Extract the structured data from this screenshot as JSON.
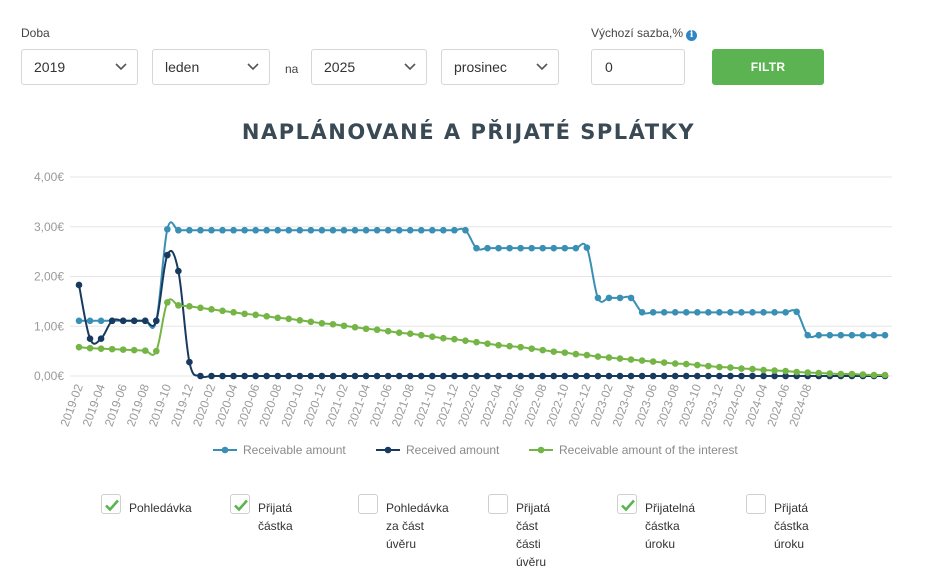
{
  "filters": {
    "period_label": "Doba",
    "from_year": "2019",
    "from_month": "leden",
    "to_label": "na",
    "to_year": "2025",
    "to_month": "prosinec",
    "rate_label": "Výchozí sazba,%",
    "rate_value": "0",
    "filter_button": "FILTR"
  },
  "checkboxes": [
    {
      "label": "Pohledávka",
      "checked": true
    },
    {
      "label": "Přijatá\nčástka",
      "checked": true
    },
    {
      "label": "Pohledávka\nza část\núvěru",
      "checked": false
    },
    {
      "label": "Přijatá\nčást části\núvěru",
      "checked": false
    },
    {
      "label": "Přijatelná\nčástka\núroku",
      "checked": true
    },
    {
      "label": "Přijatá\nčástka\núroku",
      "checked": false
    }
  ],
  "colors": {
    "receivable": "#3a8fb5",
    "received": "#173a5e",
    "interest": "#74b545",
    "accent": "#5cb352",
    "check": "#5cb352"
  },
  "chart_data": {
    "type": "line",
    "title": "NAPLÁNOVANÉ A PŘIJATÉ SPLÁTKY",
    "ylim": [
      0,
      4
    ],
    "yticks": [
      "0,00€",
      "1,00€",
      "2,00€",
      "3,00€",
      "4,00€"
    ],
    "x_start": "2019-02",
    "x_tick_labels": [
      "2019-02",
      "2019-04",
      "2019-06",
      "2019-08",
      "2019-10",
      "2019-12",
      "2020-02",
      "2020-04",
      "2020-06",
      "2020-08",
      "2020-10",
      "2020-12",
      "2021-02",
      "2021-04",
      "2021-06",
      "2021-08",
      "2021-10",
      "2021-12",
      "2022-02",
      "2022-04",
      "2022-06",
      "2022-08",
      "2022-10",
      "2022-12",
      "2023-02",
      "2023-04",
      "2023-06",
      "2023-08",
      "2023-10",
      "2023-12",
      "2024-02",
      "2024-04",
      "2024-06",
      "2024-08"
    ],
    "grid": true,
    "legend_position": "bottom",
    "series": [
      {
        "name": "Receivable amount",
        "values": [
          1.11,
          1.11,
          1.11,
          1.11,
          1.11,
          1.11,
          1.11,
          1.11,
          2.95,
          2.93,
          2.93,
          2.93,
          2.93,
          2.93,
          2.93,
          2.93,
          2.93,
          2.93,
          2.93,
          2.93,
          2.93,
          2.93,
          2.93,
          2.93,
          2.93,
          2.93,
          2.93,
          2.93,
          2.93,
          2.93,
          2.93,
          2.93,
          2.93,
          2.93,
          2.93,
          2.93,
          2.57,
          2.57,
          2.57,
          2.57,
          2.57,
          2.57,
          2.57,
          2.57,
          2.57,
          2.57,
          2.58,
          1.57,
          1.57,
          1.57,
          1.57,
          1.28,
          1.28,
          1.28,
          1.28,
          1.28,
          1.28,
          1.28,
          1.28,
          1.28,
          1.28,
          1.28,
          1.28,
          1.28,
          1.28,
          1.29,
          0.82,
          0.82,
          0.82,
          0.82,
          0.82,
          0.82,
          0.82,
          0.82
        ]
      },
      {
        "name": "Received amount",
        "values": [
          1.83,
          0.75,
          0.75,
          1.11,
          1.11,
          1.11,
          1.11,
          1.11,
          2.43,
          2.11,
          0.28,
          0,
          0,
          0,
          0,
          0,
          0,
          0,
          0,
          0,
          0,
          0,
          0,
          0,
          0,
          0,
          0,
          0,
          0,
          0,
          0,
          0,
          0,
          0,
          0,
          0,
          0,
          0,
          0,
          0,
          0,
          0,
          0,
          0,
          0,
          0,
          0,
          0,
          0,
          0,
          0,
          0,
          0,
          0,
          0,
          0,
          0,
          0,
          0,
          0,
          0,
          0,
          0,
          0,
          0,
          0,
          0,
          0,
          0,
          0,
          0,
          0,
          0,
          0
        ]
      },
      {
        "name": "Receivable amount of the interest",
        "values": [
          0.58,
          0.56,
          0.55,
          0.54,
          0.53,
          0.52,
          0.51,
          0.5,
          1.48,
          1.42,
          1.4,
          1.37,
          1.34,
          1.31,
          1.28,
          1.25,
          1.23,
          1.2,
          1.17,
          1.15,
          1.12,
          1.09,
          1.06,
          1.04,
          1.01,
          0.98,
          0.95,
          0.93,
          0.9,
          0.87,
          0.85,
          0.82,
          0.79,
          0.76,
          0.74,
          0.71,
          0.68,
          0.65,
          0.62,
          0.6,
          0.58,
          0.55,
          0.52,
          0.49,
          0.47,
          0.44,
          0.42,
          0.39,
          0.37,
          0.35,
          0.33,
          0.31,
          0.29,
          0.27,
          0.25,
          0.24,
          0.22,
          0.2,
          0.18,
          0.17,
          0.15,
          0.14,
          0.12,
          0.11,
          0.1,
          0.08,
          0.07,
          0.06,
          0.05,
          0.04,
          0.04,
          0.03,
          0.02,
          0.02
        ]
      }
    ]
  }
}
